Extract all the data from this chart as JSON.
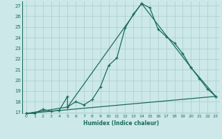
{
  "title": "",
  "xlabel": "Humidex (Indice chaleur)",
  "bg_color": "#cce8e8",
  "grid_color": "#aacccc",
  "line_color": "#1a6b5a",
  "xlim": [
    -0.5,
    23.5
  ],
  "ylim": [
    16.85,
    27.4
  ],
  "xticks": [
    0,
    1,
    2,
    3,
    4,
    5,
    6,
    7,
    8,
    9,
    10,
    11,
    12,
    13,
    14,
    15,
    16,
    17,
    18,
    19,
    20,
    21,
    22,
    23
  ],
  "yticks": [
    17,
    18,
    19,
    20,
    21,
    22,
    23,
    24,
    25,
    26,
    27
  ],
  "line1_x": [
    0,
    1,
    2,
    3,
    4,
    5,
    5,
    6,
    7,
    8,
    9,
    10,
    11,
    12,
    13,
    14,
    15,
    16,
    17,
    18,
    19,
    20,
    21,
    22,
    23
  ],
  "line1_y": [
    16.9,
    16.9,
    17.3,
    17.1,
    17.2,
    18.5,
    17.5,
    18.0,
    17.7,
    18.2,
    19.4,
    21.4,
    22.1,
    24.9,
    26.2,
    27.2,
    26.8,
    24.8,
    24.1,
    23.5,
    22.5,
    21.2,
    20.2,
    19.2,
    18.5
  ],
  "line2_x": [
    0,
    5,
    14,
    20,
    23
  ],
  "line2_y": [
    16.9,
    17.5,
    27.2,
    21.2,
    18.5
  ],
  "line3_x": [
    0,
    23
  ],
  "line3_y": [
    16.9,
    18.5
  ]
}
